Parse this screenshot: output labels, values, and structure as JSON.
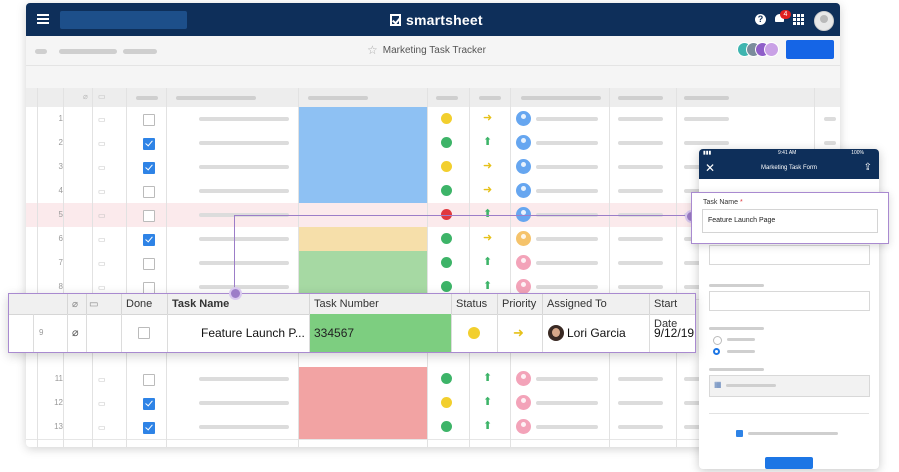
{
  "app": {
    "brand": "smartsheet",
    "notification_count": "4",
    "help_glyph": "?",
    "sheet_title": "Marketing Task Tracker"
  },
  "grid": {
    "row_numbers": [
      "1",
      "2",
      "3",
      "4",
      "5",
      "6",
      "7",
      "8",
      "",
      "11",
      "12",
      "13"
    ],
    "rows": [
      {
        "num": "1",
        "done": false,
        "task_color": "#8ec1f3",
        "status": "#f2cf2e",
        "priority": "right",
        "assignee": "#66a6f0"
      },
      {
        "num": "2",
        "done": true,
        "task_color": "#8ec1f3",
        "status": "#3db468",
        "priority": "up",
        "assignee": "#66a6f0"
      },
      {
        "num": "3",
        "done": true,
        "task_color": "#8ec1f3",
        "status": "#f2cf2e",
        "priority": "right",
        "assignee": "#66a6f0"
      },
      {
        "num": "4",
        "done": false,
        "task_color": "#8ec1f3",
        "status": "#3db468",
        "priority": "right",
        "assignee": "#66a6f0"
      },
      {
        "num": "5",
        "done": false,
        "task_color": "#fbeaec",
        "status": "#e0393e",
        "priority": "up",
        "assignee": "#66a6f0"
      },
      {
        "num": "6",
        "done": true,
        "task_color": "#f6dfaa",
        "status": "#3db468",
        "priority": "right",
        "assignee": "#f5c36b"
      },
      {
        "num": "7",
        "done": false,
        "task_color": "#a6d9a3",
        "status": "#3db468",
        "priority": "up",
        "assignee": "#f3a3b9"
      },
      {
        "num": "8",
        "done": false,
        "task_color": "#a6d9a3",
        "status": "#3db468",
        "priority": "up",
        "assignee": "#f3a3b9"
      },
      {
        "num": "",
        "done": false,
        "task_color": "#fff",
        "status": "#fff",
        "priority": "none",
        "assignee": "#fff"
      },
      {
        "num": "11",
        "done": false,
        "task_color": "#f2a3a3",
        "status": "#3db468",
        "priority": "up",
        "assignee": "#f3a3b9"
      },
      {
        "num": "12",
        "done": true,
        "task_color": "#f2a3a3",
        "status": "#f2cf2e",
        "priority": "up",
        "assignee": "#f3a3b9"
      },
      {
        "num": "13",
        "done": true,
        "task_color": "#f2a3a3",
        "status": "#3db468",
        "priority": "up",
        "assignee": "#f3a3b9"
      }
    ]
  },
  "expanded_row": {
    "headers": {
      "done": "Done",
      "task_name": "Task Name",
      "task_number": "Task Number",
      "status": "Status",
      "priority": "Priority",
      "assigned_to": "Assigned To",
      "start_date": "Start Date"
    },
    "row_number": "9",
    "task_name": "Feature Launch P...",
    "task_number": "334567",
    "assigned_to": "Lori Garcia",
    "start_date": "9/12/19"
  },
  "mobile_form": {
    "time": "9:41 AM",
    "battery": "100%",
    "title": "Marketing Task Form",
    "field_label": "Task Name",
    "required_mark": "*",
    "field_value": "Feature Launch Page"
  },
  "colors": {
    "nav_bg": "#0e2f5a",
    "accent": "#1565e6",
    "connector": "#9c7dc8",
    "status_yellow": "#f2cf2e",
    "status_green": "#3db468",
    "status_red": "#e0393e"
  }
}
